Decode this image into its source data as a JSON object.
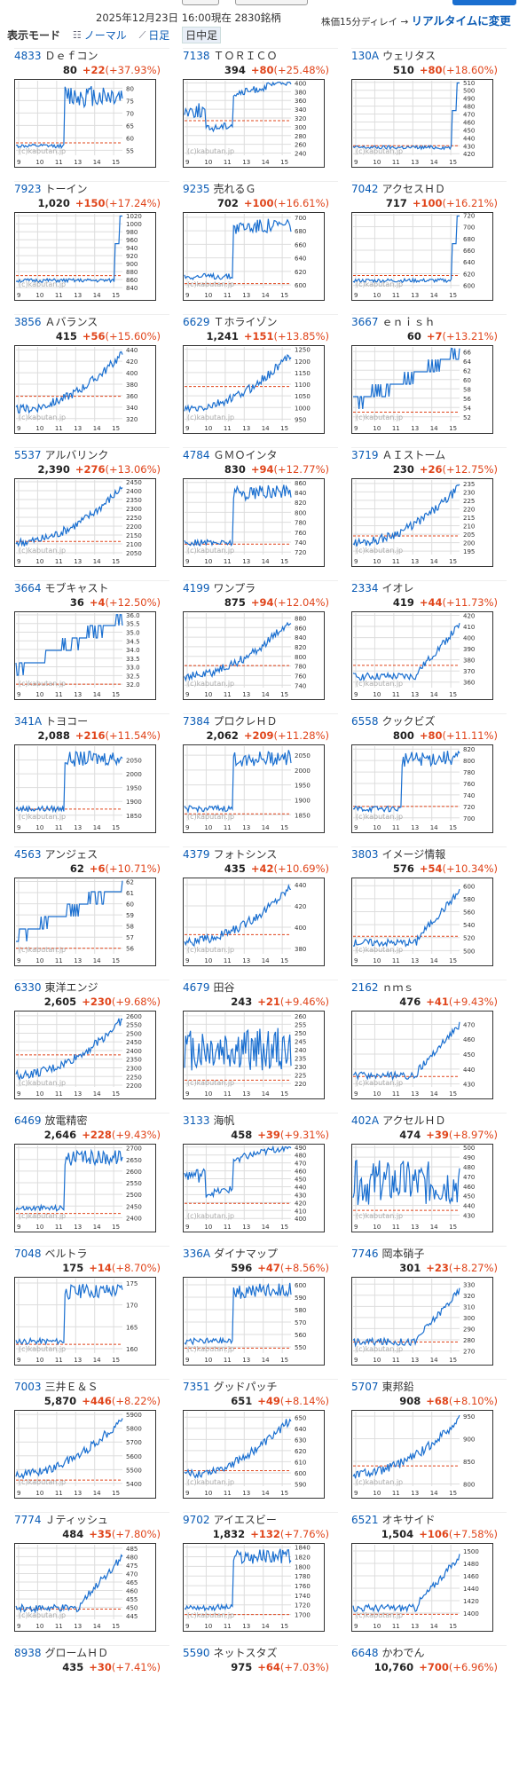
{
  "header": {
    "datetime": "2025年12月23日 16:00現在 2830銘柄",
    "delay_note": "株価15分ディレイ →",
    "realtime_link": "リアルタイムに変更"
  },
  "modes": {
    "title": "表示モード",
    "normal": "ノーマル",
    "daily": "日足",
    "intraday": "日中足"
  },
  "chart_common": {
    "x_ticks": [
      "9",
      "10",
      "11",
      "13",
      "14",
      "15"
    ],
    "watermark": "(c)kabutan.jp",
    "price_color": "#1a6fd0",
    "baseline_color": "#e0441a"
  },
  "stocks": [
    {
      "code": "4833",
      "name": "Ｄｅｆコン",
      "price": "80",
      "change": "+22",
      "pct": "(+37.93%)",
      "chart_data": {
        "type": "line",
        "y_ticks": [
          "80",
          "75",
          "70",
          "65",
          "60",
          "55"
        ],
        "ylim": [
          53,
          83
        ],
        "baseline": 58,
        "shape": "jump"
      }
    },
    {
      "code": "7138",
      "name": "ＴＯＲＩＣＯ",
      "price": "394",
      "change": "+80",
      "pct": "(+25.48%)",
      "chart_data": {
        "type": "line",
        "y_ticks": [
          "400",
          "380",
          "360",
          "340",
          "320",
          "300",
          "280",
          "260",
          "240"
        ],
        "ylim": [
          235,
          405
        ],
        "baseline": 314,
        "shape": "spike_rise"
      }
    },
    {
      "code": "130A",
      "name": "ウェリタス",
      "price": "510",
      "change": "+80",
      "pct": "(+18.60%)",
      "chart_data": {
        "type": "line",
        "y_ticks": [
          "510",
          "500",
          "490",
          "480",
          "470",
          "460",
          "450",
          "440",
          "430",
          "420"
        ],
        "ylim": [
          418,
          512
        ],
        "baseline": 430,
        "shape": "late_jump"
      }
    },
    {
      "code": "7923",
      "name": "トーイン",
      "price": "1,020",
      "change": "+150",
      "pct": "(+17.24%)",
      "chart_data": {
        "type": "line",
        "y_ticks": [
          "1020",
          "1000",
          "980",
          "960",
          "940",
          "920",
          "900",
          "880",
          "860",
          "840"
        ],
        "ylim": [
          838,
          1025
        ],
        "baseline": 870,
        "shape": "late_jump"
      }
    },
    {
      "code": "9235",
      "name": "売れるＧ",
      "price": "702",
      "change": "+100",
      "pct": "(+16.61%)",
      "chart_data": {
        "type": "line",
        "y_ticks": [
          "700",
          "680",
          "660",
          "640",
          "620",
          "600"
        ],
        "ylim": [
          595,
          705
        ],
        "baseline": 602,
        "shape": "mid_jump"
      }
    },
    {
      "code": "7042",
      "name": "アクセスＨＤ",
      "price": "717",
      "change": "+100",
      "pct": "(+16.21%)",
      "chart_data": {
        "type": "line",
        "y_ticks": [
          "720",
          "700",
          "680",
          "660",
          "640",
          "620",
          "600"
        ],
        "ylim": [
          595,
          722
        ],
        "baseline": 617,
        "shape": "late_jump"
      }
    },
    {
      "code": "3856",
      "name": "Ａバランス",
      "price": "415",
      "change": "+56",
      "pct": "(+15.60%)",
      "chart_data": {
        "type": "line",
        "y_ticks": [
          "440",
          "420",
          "400",
          "380",
          "360",
          "340",
          "320"
        ],
        "ylim": [
          315,
          445
        ],
        "baseline": 359,
        "shape": "rise"
      }
    },
    {
      "code": "6629",
      "name": "Ｔホライゾン",
      "price": "1,241",
      "change": "+151",
      "pct": "(+13.85%)",
      "chart_data": {
        "type": "line",
        "y_ticks": [
          "1250",
          "1200",
          "1150",
          "1100",
          "1050",
          "1000",
          "950"
        ],
        "ylim": [
          940,
          1260
        ],
        "baseline": 1090,
        "shape": "rise"
      }
    },
    {
      "code": "3667",
      "name": "ｅｎｉｓｈ",
      "price": "60",
      "change": "+7",
      "pct": "(+13.21%)",
      "chart_data": {
        "type": "line",
        "y_ticks": [
          "66",
          "64",
          "62",
          "60",
          "58",
          "56",
          "54",
          "52"
        ],
        "ylim": [
          51,
          67
        ],
        "baseline": 53,
        "shape": "step"
      }
    },
    {
      "code": "5537",
      "name": "アルバリンク",
      "price": "2,390",
      "change": "+276",
      "pct": "(+13.06%)",
      "chart_data": {
        "type": "line",
        "y_ticks": [
          "2450",
          "2400",
          "2350",
          "2300",
          "2250",
          "2200",
          "2150",
          "2100",
          "2050"
        ],
        "ylim": [
          2040,
          2460
        ],
        "baseline": 2114,
        "shape": "rise"
      }
    },
    {
      "code": "4784",
      "name": "ＧＭＯインタ",
      "price": "830",
      "change": "+94",
      "pct": "(+12.77%)",
      "chart_data": {
        "type": "line",
        "y_ticks": [
          "860",
          "840",
          "820",
          "800",
          "780",
          "760",
          "740",
          "720"
        ],
        "ylim": [
          715,
          865
        ],
        "baseline": 736,
        "shape": "mid_jump"
      }
    },
    {
      "code": "3719",
      "name": "ＡＩストーム",
      "price": "230",
      "change": "+26",
      "pct": "(+12.75%)",
      "chart_data": {
        "type": "line",
        "y_ticks": [
          "235",
          "230",
          "225",
          "220",
          "215",
          "210",
          "205",
          "200",
          "195"
        ],
        "ylim": [
          193,
          237
        ],
        "baseline": 204,
        "shape": "rise"
      }
    },
    {
      "code": "3664",
      "name": "モブキャスト",
      "price": "36",
      "change": "+4",
      "pct": "(+12.50%)",
      "chart_data": {
        "type": "line",
        "y_ticks": [
          "36.0",
          "35.5",
          "35.0",
          "34.5",
          "34.0",
          "33.5",
          "33.0",
          "32.5",
          "32.0"
        ],
        "ylim": [
          31.8,
          36.1
        ],
        "baseline": 32,
        "shape": "step"
      }
    },
    {
      "code": "4199",
      "name": "ワンプラ",
      "price": "875",
      "change": "+94",
      "pct": "(+12.04%)",
      "chart_data": {
        "type": "line",
        "y_ticks": [
          "880",
          "860",
          "840",
          "820",
          "800",
          "780",
          "760",
          "740"
        ],
        "ylim": [
          735,
          890
        ],
        "baseline": 781,
        "shape": "rise"
      }
    },
    {
      "code": "2334",
      "name": "イオレ",
      "price": "419",
      "change": "+44",
      "pct": "(+11.73%)",
      "chart_data": {
        "type": "line",
        "y_ticks": [
          "420",
          "410",
          "400",
          "390",
          "380",
          "370",
          "360"
        ],
        "ylim": [
          355,
          422
        ],
        "baseline": 375,
        "shape": "late_rise"
      }
    },
    {
      "code": "341A",
      "name": "トヨコー",
      "price": "2,088",
      "change": "+216",
      "pct": "(+11.54%)",
      "chart_data": {
        "type": "line",
        "y_ticks": [
          "2050",
          "2000",
          "1950",
          "1900",
          "1850"
        ],
        "ylim": [
          1830,
          2100
        ],
        "baseline": 1872,
        "shape": "mid_jump"
      }
    },
    {
      "code": "7384",
      "name": "プロクレＨＤ",
      "price": "2,062",
      "change": "+209",
      "pct": "(+11.28%)",
      "chart_data": {
        "type": "line",
        "y_ticks": [
          "2050",
          "2000",
          "1950",
          "1900",
          "1850"
        ],
        "ylim": [
          1830,
          2080
        ],
        "baseline": 1853,
        "shape": "mid_jump"
      }
    },
    {
      "code": "6558",
      "name": "クックビズ",
      "price": "800",
      "change": "+80",
      "pct": "(+11.11%)",
      "chart_data": {
        "type": "line",
        "y_ticks": [
          "820",
          "800",
          "780",
          "760",
          "740",
          "720",
          "700"
        ],
        "ylim": [
          695,
          825
        ],
        "baseline": 720,
        "shape": "mid_jump"
      }
    },
    {
      "code": "4563",
      "name": "アンジェス",
      "price": "62",
      "change": "+6",
      "pct": "(+10.71%)",
      "chart_data": {
        "type": "line",
        "y_ticks": [
          "62",
          "61",
          "60",
          "59",
          "58",
          "57",
          "56"
        ],
        "ylim": [
          55.5,
          62.2
        ],
        "baseline": 56,
        "shape": "step"
      }
    },
    {
      "code": "4379",
      "name": "フォトシンス",
      "price": "435",
      "change": "+42",
      "pct": "(+10.69%)",
      "chart_data": {
        "type": "line",
        "y_ticks": [
          "440",
          "420",
          "400",
          "380"
        ],
        "ylim": [
          375,
          445
        ],
        "baseline": 393,
        "shape": "rise"
      }
    },
    {
      "code": "3803",
      "name": "イメージ情報",
      "price": "576",
      "change": "+54",
      "pct": "(+10.34%)",
      "chart_data": {
        "type": "line",
        "y_ticks": [
          "600",
          "580",
          "560",
          "540",
          "520",
          "500"
        ],
        "ylim": [
          495,
          610
        ],
        "baseline": 522,
        "shape": "late_rise"
      }
    },
    {
      "code": "6330",
      "name": "東洋エンジ",
      "price": "2,605",
      "change": "+230",
      "pct": "(+9.68%)",
      "chart_data": {
        "type": "line",
        "y_ticks": [
          "2600",
          "2550",
          "2500",
          "2450",
          "2400",
          "2350",
          "2300",
          "2250",
          "2200"
        ],
        "ylim": [
          2190,
          2620
        ],
        "baseline": 2375,
        "shape": "rise"
      }
    },
    {
      "code": "4679",
      "name": "田谷",
      "price": "243",
      "change": "+21",
      "pct": "(+9.46%)",
      "chart_data": {
        "type": "line",
        "y_ticks": [
          "260",
          "255",
          "250",
          "245",
          "240",
          "235",
          "230",
          "225",
          "220"
        ],
        "ylim": [
          218,
          262
        ],
        "baseline": 222,
        "shape": "noisy"
      }
    },
    {
      "code": "2162",
      "name": "ｎｍｓ",
      "price": "476",
      "change": "+41",
      "pct": "(+9.43%)",
      "chart_data": {
        "type": "line",
        "y_ticks": [
          "470",
          "460",
          "450",
          "440",
          "430"
        ],
        "ylim": [
          428,
          478
        ],
        "baseline": 435,
        "shape": "late_rise"
      }
    },
    {
      "code": "6469",
      "name": "放電精密",
      "price": "2,646",
      "change": "+228",
      "pct": "(+9.43%)",
      "chart_data": {
        "type": "line",
        "y_ticks": [
          "2700",
          "2650",
          "2600",
          "2550",
          "2500",
          "2450",
          "2400"
        ],
        "ylim": [
          2390,
          2710
        ],
        "baseline": 2418,
        "shape": "mid_jump"
      }
    },
    {
      "code": "3133",
      "name": "海帆",
      "price": "458",
      "change": "+39",
      "pct": "(+9.31%)",
      "chart_data": {
        "type": "line",
        "y_ticks": [
          "490",
          "480",
          "470",
          "460",
          "450",
          "440",
          "430",
          "420",
          "410",
          "400"
        ],
        "ylim": [
          398,
          492
        ],
        "baseline": 419,
        "shape": "spike_rise"
      }
    },
    {
      "code": "402A",
      "name": "アクセルＨＤ",
      "price": "474",
      "change": "+39",
      "pct": "(+8.97%)",
      "chart_data": {
        "type": "line",
        "y_ticks": [
          "500",
          "490",
          "480",
          "470",
          "460",
          "450",
          "440",
          "430"
        ],
        "ylim": [
          425,
          502
        ],
        "baseline": 435,
        "shape": "noisy"
      }
    },
    {
      "code": "7048",
      "name": "ベルトラ",
      "price": "175",
      "change": "+14",
      "pct": "(+8.70%)",
      "chart_data": {
        "type": "line",
        "y_ticks": [
          "175",
          "170",
          "165",
          "160"
        ],
        "ylim": [
          159,
          176
        ],
        "baseline": 161,
        "shape": "mid_jump"
      }
    },
    {
      "code": "336A",
      "name": "ダイナマップ",
      "price": "596",
      "change": "+47",
      "pct": "(+8.56%)",
      "chart_data": {
        "type": "line",
        "y_ticks": [
          "600",
          "590",
          "580",
          "570",
          "560",
          "550"
        ],
        "ylim": [
          545,
          605
        ],
        "baseline": 549,
        "shape": "mid_jump"
      }
    },
    {
      "code": "7746",
      "name": "岡本硝子",
      "price": "301",
      "change": "+23",
      "pct": "(+8.27%)",
      "chart_data": {
        "type": "line",
        "y_ticks": [
          "330",
          "320",
          "310",
          "300",
          "290",
          "280",
          "270"
        ],
        "ylim": [
          268,
          335
        ],
        "baseline": 278,
        "shape": "late_rise"
      }
    },
    {
      "code": "7003",
      "name": "三井Ｅ＆Ｓ",
      "price": "5,870",
      "change": "+446",
      "pct": "(+8.22%)",
      "chart_data": {
        "type": "line",
        "y_ticks": [
          "5900",
          "5800",
          "5700",
          "5600",
          "5500",
          "5400"
        ],
        "ylim": [
          5380,
          5920
        ],
        "baseline": 5424,
        "shape": "rise"
      }
    },
    {
      "code": "7351",
      "name": "グッドパッチ",
      "price": "651",
      "change": "+49",
      "pct": "(+8.14%)",
      "chart_data": {
        "type": "line",
        "y_ticks": [
          "650",
          "640",
          "630",
          "620",
          "610",
          "600",
          "590"
        ],
        "ylim": [
          588,
          655
        ],
        "baseline": 602,
        "shape": "rise"
      }
    },
    {
      "code": "5707",
      "name": "東邦鉛",
      "price": "908",
      "change": "+68",
      "pct": "(+8.10%)",
      "chart_data": {
        "type": "line",
        "y_ticks": [
          "950",
          "900",
          "850",
          "800"
        ],
        "ylim": [
          795,
          960
        ],
        "baseline": 840,
        "shape": "rise"
      }
    },
    {
      "code": "7774",
      "name": "Ｊティッシュ",
      "price": "484",
      "change": "+35",
      "pct": "(+7.80%)",
      "chart_data": {
        "type": "line",
        "y_ticks": [
          "485",
          "480",
          "475",
          "470",
          "465",
          "460",
          "455",
          "450",
          "445"
        ],
        "ylim": [
          443,
          487
        ],
        "baseline": 449,
        "shape": "late_rise"
      }
    },
    {
      "code": "9702",
      "name": "アイエスビー",
      "price": "1,832",
      "change": "+132",
      "pct": "(+7.76%)",
      "chart_data": {
        "type": "line",
        "y_ticks": [
          "1840",
          "1820",
          "1800",
          "1780",
          "1760",
          "1740",
          "1720",
          "1700"
        ],
        "ylim": [
          1690,
          1845
        ],
        "baseline": 1700,
        "shape": "mid_jump"
      }
    },
    {
      "code": "6521",
      "name": "オキサイド",
      "price": "1,504",
      "change": "+106",
      "pct": "(+7.58%)",
      "chart_data": {
        "type": "line",
        "y_ticks": [
          "1500",
          "1480",
          "1460",
          "1440",
          "1420",
          "1400"
        ],
        "ylim": [
          1390,
          1510
        ],
        "baseline": 1398,
        "shape": "late_rise"
      }
    },
    {
      "code": "8938",
      "name": "グロームＨＤ",
      "price": "435",
      "change": "+30",
      "pct": "(+7.41%)"
    },
    {
      "code": "5590",
      "name": "ネットスタズ",
      "price": "975",
      "change": "+64",
      "pct": "(+7.03%)"
    },
    {
      "code": "6648",
      "name": "かわでん",
      "price": "10,760",
      "change": "+700",
      "pct": "(+6.96%)"
    }
  ]
}
